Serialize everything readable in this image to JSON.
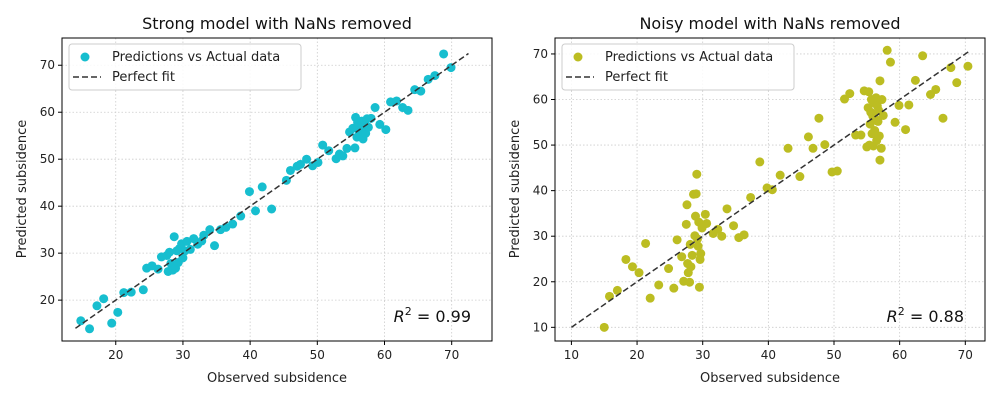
{
  "chart_data": [
    {
      "type": "scatter",
      "title": "Strong model with NaNs removed",
      "xlabel": "Observed subsidence",
      "ylabel": "Predicted subsidence",
      "xlim": [
        12,
        76
      ],
      "ylim": [
        11.3,
        75.8
      ],
      "xticks": [
        20,
        30,
        40,
        50,
        60,
        70
      ],
      "yticks": [
        20,
        30,
        40,
        50,
        60,
        70
      ],
      "grid": true,
      "legend_position": "top-left",
      "r2_label": "R",
      "r2_value": "= 0.99",
      "series": [
        {
          "name": "Predictions vs Actual data",
          "color": "#17becf",
          "points": [
            [
              14.8,
              15.6
            ],
            [
              16.1,
              13.9
            ],
            [
              17.2,
              18.8
            ],
            [
              18.2,
              20.3
            ],
            [
              19.4,
              15.1
            ],
            [
              20.3,
              17.4
            ],
            [
              21.2,
              21.6
            ],
            [
              22.3,
              21.7
            ],
            [
              24.1,
              22.2
            ],
            [
              24.6,
              26.8
            ],
            [
              25.4,
              27.3
            ],
            [
              26.3,
              26.6
            ],
            [
              26.8,
              29.2
            ],
            [
              27.6,
              29.5
            ],
            [
              27.8,
              26.1
            ],
            [
              28.0,
              30.2
            ],
            [
              28.2,
              27.8
            ],
            [
              28.5,
              26.4
            ],
            [
              28.7,
              33.5
            ],
            [
              28.9,
              26.8
            ],
            [
              29.1,
              30.5
            ],
            [
              29.3,
              28.0
            ],
            [
              29.5,
              31.0
            ],
            [
              29.8,
              32.0
            ],
            [
              30.0,
              29.0
            ],
            [
              30.3,
              30.5
            ],
            [
              30.6,
              32.5
            ],
            [
              31.1,
              30.8
            ],
            [
              31.6,
              33.1
            ],
            [
              32.2,
              31.9
            ],
            [
              32.8,
              32.6
            ],
            [
              33.1,
              33.8
            ],
            [
              34.0,
              35.0
            ],
            [
              34.7,
              31.6
            ],
            [
              35.6,
              35.0
            ],
            [
              36.4,
              35.5
            ],
            [
              37.4,
              36.2
            ],
            [
              38.6,
              37.9
            ],
            [
              39.9,
              43.1
            ],
            [
              40.8,
              39.0
            ],
            [
              41.8,
              44.1
            ],
            [
              43.2,
              39.4
            ],
            [
              45.4,
              45.5
            ],
            [
              46.0,
              47.6
            ],
            [
              47.0,
              48.5
            ],
            [
              47.5,
              48.9
            ],
            [
              48.4,
              50.0
            ],
            [
              49.3,
              48.6
            ],
            [
              50.1,
              49.3
            ],
            [
              50.8,
              53.0
            ],
            [
              51.7,
              51.8
            ],
            [
              52.8,
              50.1
            ],
            [
              53.3,
              51.1
            ],
            [
              53.8,
              50.7
            ],
            [
              54.4,
              52.3
            ],
            [
              54.8,
              55.8
            ],
            [
              55.3,
              56.6
            ],
            [
              55.6,
              52.4
            ],
            [
              55.7,
              58.9
            ],
            [
              55.9,
              54.7
            ],
            [
              56.0,
              57.8
            ],
            [
              56.2,
              56.1
            ],
            [
              56.4,
              55.4
            ],
            [
              56.6,
              58.1
            ],
            [
              56.8,
              54.3
            ],
            [
              57.0,
              57.2
            ],
            [
              57.2,
              55.5
            ],
            [
              57.4,
              58.6
            ],
            [
              57.6,
              56.8
            ],
            [
              58.0,
              58.7
            ],
            [
              58.6,
              61.0
            ],
            [
              59.3,
              57.4
            ],
            [
              60.2,
              56.3
            ],
            [
              60.9,
              62.2
            ],
            [
              61.8,
              62.4
            ],
            [
              62.7,
              61.0
            ],
            [
              63.5,
              60.4
            ],
            [
              64.5,
              64.8
            ],
            [
              65.4,
              64.5
            ],
            [
              66.5,
              67.0
            ],
            [
              67.5,
              67.8
            ],
            [
              68.8,
              72.4
            ],
            [
              69.9,
              69.5
            ]
          ]
        },
        {
          "name": "Perfect fit",
          "color": "#333333",
          "line": [
            [
              14.0,
              14.0
            ],
            [
              72.5,
              72.5
            ]
          ]
        }
      ]
    },
    {
      "type": "scatter",
      "title": "Noisy model with NaNs removed",
      "xlabel": "Observed subsidence",
      "ylabel": "Predicted subsidence",
      "xlim": [
        7.5,
        73.0
      ],
      "ylim": [
        7.0,
        73.5
      ],
      "xticks": [
        10,
        20,
        30,
        40,
        50,
        60,
        70
      ],
      "yticks": [
        10,
        20,
        30,
        40,
        50,
        60,
        70
      ],
      "grid": true,
      "legend_position": "top-left",
      "r2_label": "R",
      "r2_value": "= 0.88",
      "series": [
        {
          "name": "Predictions vs Actual data",
          "color": "#bcbd22",
          "points": [
            [
              15.0,
              10.0
            ],
            [
              15.8,
              16.8
            ],
            [
              17.0,
              18.1
            ],
            [
              18.3,
              24.9
            ],
            [
              19.3,
              23.3
            ],
            [
              20.3,
              22.0
            ],
            [
              21.3,
              28.4
            ],
            [
              22.0,
              16.4
            ],
            [
              23.3,
              19.3
            ],
            [
              24.8,
              22.9
            ],
            [
              25.6,
              18.6
            ],
            [
              26.1,
              29.2
            ],
            [
              26.8,
              25.5
            ],
            [
              27.1,
              20.1
            ],
            [
              27.5,
              32.6
            ],
            [
              27.6,
              36.9
            ],
            [
              27.7,
              24.0
            ],
            [
              27.8,
              22.0
            ],
            [
              28.0,
              19.9
            ],
            [
              28.1,
              28.2
            ],
            [
              28.2,
              23.3
            ],
            [
              28.4,
              25.8
            ],
            [
              28.6,
              39.2
            ],
            [
              28.8,
              30.1
            ],
            [
              28.9,
              34.4
            ],
            [
              29.0,
              39.3
            ],
            [
              29.1,
              43.6
            ],
            [
              29.2,
              29.4
            ],
            [
              29.3,
              27.8
            ],
            [
              29.4,
              33.1
            ],
            [
              29.5,
              18.8
            ],
            [
              29.6,
              24.9
            ],
            [
              29.7,
              26.2
            ],
            [
              29.9,
              31.8
            ],
            [
              30.4,
              34.8
            ],
            [
              30.6,
              32.8
            ],
            [
              31.6,
              30.6
            ],
            [
              32.3,
              31.5
            ],
            [
              32.9,
              30.0
            ],
            [
              33.7,
              36.0
            ],
            [
              34.7,
              32.3
            ],
            [
              35.5,
              29.7
            ],
            [
              36.3,
              30.3
            ],
            [
              37.3,
              38.5
            ],
            [
              38.7,
              46.3
            ],
            [
              39.8,
              40.6
            ],
            [
              40.6,
              40.2
            ],
            [
              41.8,
              43.4
            ],
            [
              43.0,
              49.3
            ],
            [
              44.8,
              43.1
            ],
            [
              46.1,
              51.8
            ],
            [
              46.8,
              49.3
            ],
            [
              47.7,
              55.9
            ],
            [
              48.6,
              50.1
            ],
            [
              49.7,
              44.1
            ],
            [
              50.5,
              44.3
            ],
            [
              51.6,
              60.1
            ],
            [
              52.4,
              61.3
            ],
            [
              53.3,
              52.2
            ],
            [
              54.1,
              52.2
            ],
            [
              54.6,
              61.9
            ],
            [
              55.0,
              49.6
            ],
            [
              55.2,
              58.2
            ],
            [
              55.3,
              61.7
            ],
            [
              55.4,
              50.0
            ],
            [
              55.5,
              54.6
            ],
            [
              55.6,
              57.2
            ],
            [
              55.7,
              60.0
            ],
            [
              55.8,
              52.5
            ],
            [
              55.9,
              56.4
            ],
            [
              56.0,
              49.8
            ],
            [
              56.1,
              59.3
            ],
            [
              56.2,
              53.2
            ],
            [
              56.3,
              55.7
            ],
            [
              56.4,
              60.4
            ],
            [
              56.5,
              51.0
            ],
            [
              56.6,
              58.6
            ],
            [
              56.7,
              55.2
            ],
            [
              56.8,
              57.6
            ],
            [
              56.9,
              52.0
            ],
            [
              57.0,
              64.1
            ],
            [
              57.0,
              46.7
            ],
            [
              57.2,
              49.3
            ],
            [
              57.3,
              60.0
            ],
            [
              57.5,
              56.5
            ],
            [
              58.1,
              70.8
            ],
            [
              58.6,
              68.2
            ],
            [
              59.3,
              55.0
            ],
            [
              59.9,
              58.7
            ],
            [
              60.9,
              53.4
            ],
            [
              61.4,
              58.8
            ],
            [
              62.4,
              64.2
            ],
            [
              63.5,
              69.6
            ],
            [
              64.7,
              61.1
            ],
            [
              65.5,
              62.2
            ],
            [
              66.6,
              55.9
            ],
            [
              67.8,
              67.0
            ],
            [
              68.7,
              63.7
            ],
            [
              70.4,
              67.3
            ]
          ]
        },
        {
          "name": "Perfect fit",
          "color": "#333333",
          "line": [
            [
              10.0,
              10.0
            ],
            [
              70.5,
              70.5
            ]
          ]
        }
      ]
    }
  ]
}
